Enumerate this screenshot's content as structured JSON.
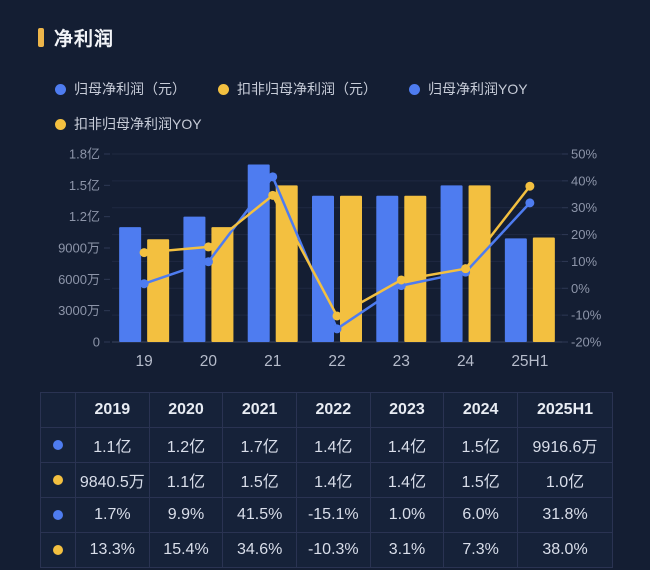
{
  "page": {
    "title": "净利润",
    "background": "#141e33",
    "colors": {
      "blue": "#4e7cf0",
      "yellow": "#f3c040",
      "title_marker": "#edb54a"
    }
  },
  "legend": {
    "items": [
      {
        "label": "归母净利润（元）",
        "color": "blue"
      },
      {
        "label": "扣非归母净利润（元）",
        "color": "yellow"
      },
      {
        "label": "归母净利润YOY",
        "color": "blue"
      },
      {
        "label": "扣非归母净利润YOY",
        "color": "yellow"
      }
    ]
  },
  "chart_data": {
    "type": "bar+line combo",
    "title": "净利润",
    "categories": [
      "19",
      "20",
      "21",
      "22",
      "23",
      "24",
      "25H1"
    ],
    "series": [
      {
        "name": "归母净利润（元）",
        "type": "bar",
        "color": "blue",
        "axis": "left",
        "unit": "万元",
        "values": [
          11000,
          12000,
          17000,
          14000,
          14000,
          15000,
          9916.6
        ]
      },
      {
        "name": "扣非归母净利润（元）",
        "type": "bar",
        "color": "yellow",
        "axis": "left",
        "unit": "万元",
        "values": [
          9840.5,
          11000,
          15000,
          14000,
          14000,
          15000,
          10000
        ]
      },
      {
        "name": "归母净利润YOY",
        "type": "line",
        "color": "blue",
        "axis": "right",
        "unit": "%",
        "values": [
          1.7,
          9.9,
          41.5,
          -15.1,
          1.0,
          6.0,
          31.8
        ]
      },
      {
        "name": "扣非归母净利润YOY",
        "type": "line",
        "color": "yellow",
        "axis": "right",
        "unit": "%",
        "values": [
          13.3,
          15.4,
          34.6,
          -10.3,
          3.1,
          7.3,
          38.0
        ]
      }
    ],
    "left_axis": {
      "min": 0,
      "max": 18000,
      "unit": "万元",
      "ticks": [
        "0",
        "3000万",
        "6000万",
        "9000万",
        "1.2亿",
        "1.5亿",
        "1.8亿"
      ]
    },
    "right_axis": {
      "min": -20,
      "max": 50,
      "unit": "%",
      "ticks": [
        "-20%",
        "-10%",
        "0%",
        "10%",
        "20%",
        "30%",
        "40%",
        "50%"
      ]
    },
    "grid": "horizontal-faint",
    "legend_position": "top"
  },
  "table": {
    "headers": [
      "",
      "2019",
      "2020",
      "2021",
      "2022",
      "2023",
      "2024",
      "2025H1"
    ],
    "rows": [
      {
        "series": "归母净利润（元）",
        "dot": "blue",
        "cells": [
          "1.1亿",
          "1.2亿",
          "1.7亿",
          "1.4亿",
          "1.4亿",
          "1.5亿",
          "9916.6万"
        ]
      },
      {
        "series": "扣非归母净利润（元）",
        "dot": "yellow",
        "cells": [
          "9840.5万",
          "1.1亿",
          "1.5亿",
          "1.4亿",
          "1.4亿",
          "1.5亿",
          "1.0亿"
        ]
      },
      {
        "series": "归母净利润YOY",
        "dot": "blue",
        "cells": [
          "1.7%",
          "9.9%",
          "41.5%",
          "-15.1%",
          "1.0%",
          "6.0%",
          "31.8%"
        ]
      },
      {
        "series": "扣非归母净利润YOY",
        "dot": "yellow",
        "cells": [
          "13.3%",
          "15.4%",
          "34.6%",
          "-10.3%",
          "3.1%",
          "7.3%",
          "38.0%"
        ]
      }
    ]
  }
}
